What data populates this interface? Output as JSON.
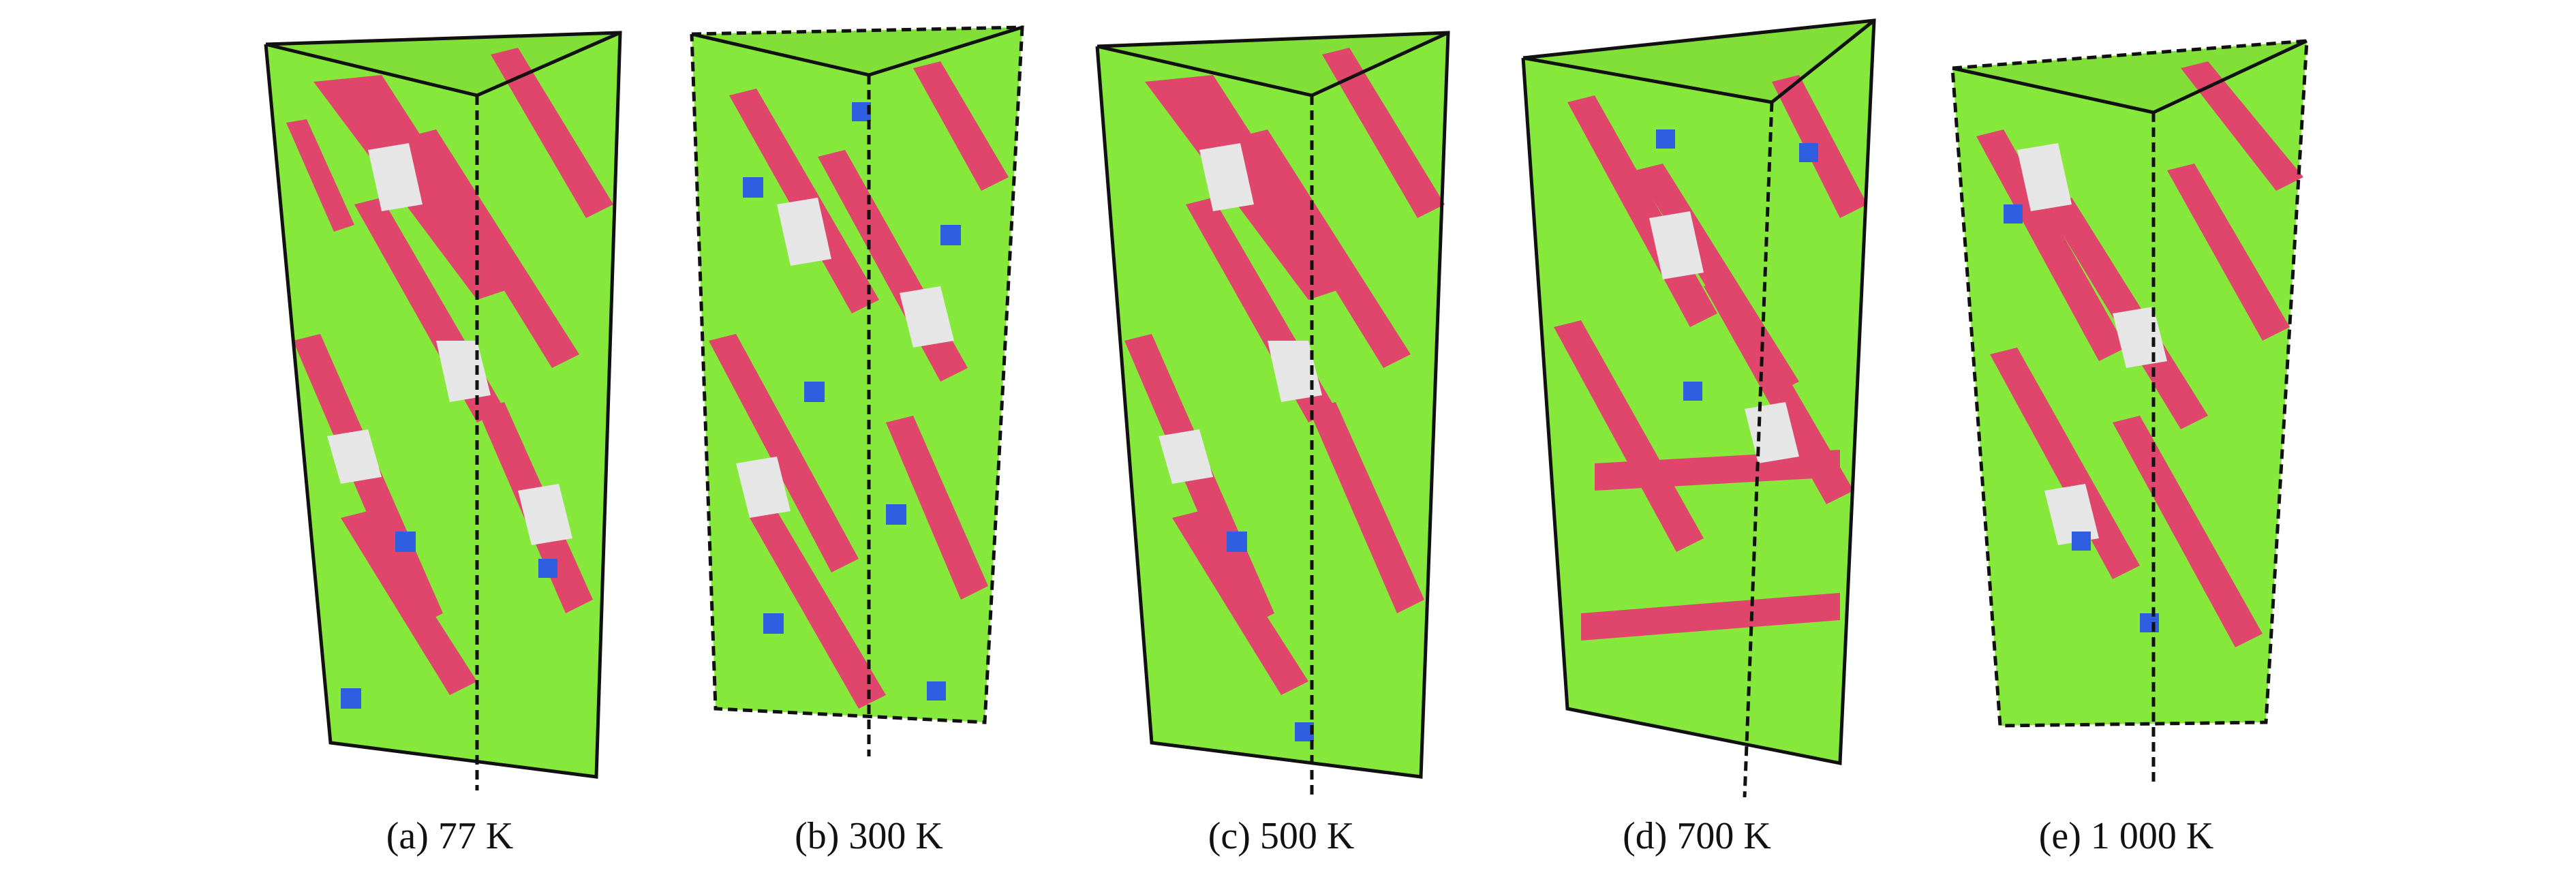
{
  "figure": {
    "panels": [
      {
        "caption": "(a) 77 K"
      },
      {
        "caption": "(b) 300 K"
      },
      {
        "caption": "(c) 500 K"
      },
      {
        "caption": "(d) 700 K"
      },
      {
        "caption": "(e) 1 000 K"
      }
    ],
    "colors": {
      "fcc_atoms": "#86e83a",
      "hcp_atoms": "#e0456c",
      "other_atoms": "#e6e6e6",
      "bcc_atoms": "#2f5fe0",
      "box_edges": "#111111"
    }
  }
}
